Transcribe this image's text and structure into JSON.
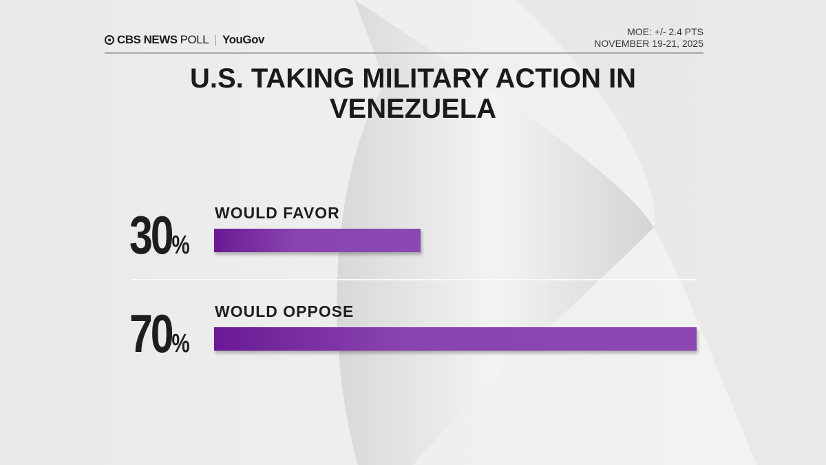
{
  "header": {
    "logo_cbs": "CBS NEWS",
    "logo_poll": "POLL",
    "logo_partner": "YouGov",
    "moe": "MOE: +/- 2.4 PTS",
    "dates": "NOVEMBER 19-21, 2025"
  },
  "chart_data": {
    "type": "bar",
    "title": "U.S. TAKING MILITARY ACTION IN VENEZUELA",
    "categories": [
      "WOULD FAVOR",
      "WOULD OPPOSE"
    ],
    "values": [
      30,
      70
    ],
    "value_labels": [
      "30",
      "70"
    ],
    "unit": "%",
    "ylim": [
      0,
      70
    ],
    "bar_color": "#8b48b2",
    "grid": false
  }
}
